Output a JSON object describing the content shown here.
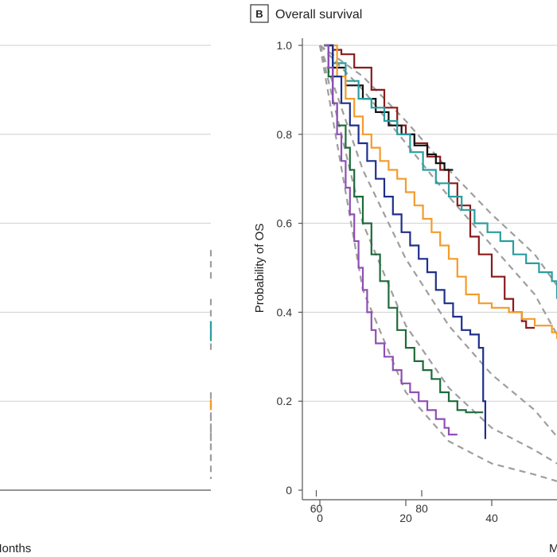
{
  "chart_data": [
    {
      "panel": "A",
      "type": "line",
      "title": "",
      "xlabel": "Months",
      "ylabel": "",
      "xlim": [
        0,
        80
      ],
      "x_ticks": [
        {
          "value": 60,
          "label": "60"
        },
        {
          "value": 80,
          "label": "80"
        }
      ],
      "y_grid": [
        0.2,
        0.4,
        0.6,
        0.8,
        1.0
      ],
      "grid": "horizontal",
      "colors": {
        "teal": "#2a9d9f",
        "orange": "#f39c2a",
        "dashed": "#9e9e9e"
      },
      "series": [
        {
          "color": "teal",
          "style": "step",
          "points": [
            [
              40,
              0.38
            ],
            [
              44,
              0.377
            ],
            [
              47,
              0.37
            ],
            [
              50,
              0.367
            ],
            [
              54,
              0.363
            ],
            [
              58,
              0.36
            ],
            [
              62,
              0.355
            ],
            [
              66,
              0.35
            ],
            [
              66,
              0.335
            ],
            [
              71,
              0.335
            ]
          ]
        },
        {
          "color": "orange",
          "style": "step",
          "points": [
            [
              40,
              0.205
            ],
            [
              50,
              0.205
            ],
            [
              50,
              0.19
            ],
            [
              62,
              0.19
            ],
            [
              62,
              0.18
            ],
            [
              72,
              0.18
            ]
          ]
        }
      ],
      "fits": [
        {
          "points": [
            [
              40,
              0.54
            ],
            [
              55,
              0.515
            ],
            [
              70,
              0.49
            ],
            [
              80,
              0.475
            ]
          ]
        },
        {
          "points": [
            [
              40,
              0.43
            ],
            [
              55,
              0.38
            ],
            [
              70,
              0.335
            ],
            [
              80,
              0.305
            ]
          ]
        },
        {
          "points": [
            [
              40,
              0.22
            ],
            [
              50,
              0.19
            ],
            [
              60,
              0.165
            ],
            [
              70,
              0.145
            ],
            [
              80,
              0.13
            ]
          ]
        },
        {
          "points": [
            [
              40,
              0.2
            ],
            [
              50,
              0.165
            ],
            [
              60,
              0.135
            ],
            [
              70,
              0.11
            ],
            [
              80,
              0.09
            ]
          ]
        },
        {
          "points": [
            [
              40,
              0.13
            ],
            [
              50,
              0.105
            ],
            [
              60,
              0.085
            ],
            [
              70,
              0.072
            ],
            [
              80,
              0.06
            ]
          ]
        },
        {
          "points": [
            [
              40,
              0.08
            ],
            [
              50,
              0.06
            ],
            [
              60,
              0.04
            ],
            [
              70,
              0.03
            ],
            [
              75,
              0.025
            ]
          ]
        }
      ]
    },
    {
      "panel": "B",
      "type": "line",
      "title": "Overall survival",
      "badge": "B",
      "xlabel": "M",
      "ylabel": "Probability of OS",
      "xlim": [
        -5,
        60
      ],
      "ylim": [
        0,
        1.0
      ],
      "x_ticks": [
        {
          "value": 0,
          "label": "0"
        },
        {
          "value": 20,
          "label": "20"
        },
        {
          "value": 40,
          "label": "40"
        }
      ],
      "y_ticks": [
        {
          "value": 0,
          "label": "0"
        },
        {
          "value": 0.2,
          "label": "0.2"
        },
        {
          "value": 0.4,
          "label": "0.4"
        },
        {
          "value": 0.6,
          "label": "0.6"
        },
        {
          "value": 0.8,
          "label": "0.8"
        },
        {
          "value": 1.0,
          "label": "1.0"
        }
      ],
      "grid": "horizontal",
      "colors": {
        "darkred": "#8b1a1a",
        "black": "#111111",
        "teal": "#2a9d9f",
        "orange": "#f39c2a",
        "navy": "#1f2f8a",
        "green": "#1e6b3a",
        "purple": "#8e4fb5",
        "dashed": "#9e9e9e"
      },
      "series": [
        {
          "color": "darkred",
          "style": "step",
          "points": [
            [
              1,
              1.0
            ],
            [
              3,
              0.99
            ],
            [
              5,
              0.98
            ],
            [
              8,
              0.95
            ],
            [
              12,
              0.9
            ],
            [
              15,
              0.86
            ],
            [
              18,
              0.82
            ],
            [
              20,
              0.8
            ],
            [
              22,
              0.78
            ],
            [
              25,
              0.75
            ],
            [
              28,
              0.72
            ],
            [
              30,
              0.69
            ],
            [
              32,
              0.64
            ],
            [
              35,
              0.57
            ],
            [
              37,
              0.53
            ],
            [
              40,
              0.48
            ],
            [
              43,
              0.43
            ],
            [
              45,
              0.4
            ],
            [
              47,
              0.38
            ],
            [
              48,
              0.365
            ],
            [
              50,
              0.365
            ]
          ]
        },
        {
          "color": "black",
          "style": "step",
          "points": [
            [
              1,
              1.0
            ],
            [
              3,
              0.95
            ],
            [
              6,
              0.91
            ],
            [
              10,
              0.88
            ],
            [
              13,
              0.85
            ],
            [
              16,
              0.82
            ],
            [
              19,
              0.8
            ],
            [
              22,
              0.775
            ],
            [
              25,
              0.755
            ],
            [
              27,
              0.735
            ],
            [
              29,
              0.72
            ],
            [
              31,
              0.72
            ]
          ]
        },
        {
          "color": "teal",
          "style": "step",
          "points": [
            [
              1,
              1.0
            ],
            [
              3,
              0.96
            ],
            [
              6,
              0.92
            ],
            [
              9,
              0.88
            ],
            [
              12,
              0.86
            ],
            [
              15,
              0.83
            ],
            [
              18,
              0.8
            ],
            [
              21,
              0.76
            ],
            [
              24,
              0.72
            ],
            [
              27,
              0.69
            ],
            [
              30,
              0.66
            ],
            [
              33,
              0.63
            ],
            [
              36,
              0.6
            ],
            [
              39,
              0.58
            ],
            [
              42,
              0.56
            ],
            [
              45,
              0.53
            ],
            [
              48,
              0.51
            ],
            [
              51,
              0.49
            ],
            [
              54,
              0.47
            ],
            [
              56,
              0.455
            ],
            [
              58,
              0.44
            ],
            [
              60,
              0.43
            ]
          ]
        },
        {
          "color": "orange",
          "style": "step",
          "points": [
            [
              2,
              1.0
            ],
            [
              4,
              0.93
            ],
            [
              6,
              0.88
            ],
            [
              8,
              0.84
            ],
            [
              10,
              0.8
            ],
            [
              12,
              0.77
            ],
            [
              14,
              0.74
            ],
            [
              16,
              0.72
            ],
            [
              18,
              0.7
            ],
            [
              20,
              0.67
            ],
            [
              22,
              0.64
            ],
            [
              24,
              0.61
            ],
            [
              26,
              0.58
            ],
            [
              28,
              0.55
            ],
            [
              30,
              0.52
            ],
            [
              32,
              0.48
            ],
            [
              34,
              0.44
            ],
            [
              37,
              0.42
            ],
            [
              40,
              0.41
            ],
            [
              44,
              0.4
            ],
            [
              47,
              0.385
            ],
            [
              50,
              0.37
            ],
            [
              54,
              0.355
            ],
            [
              58,
              0.345
            ],
            [
              60,
              0.34
            ]
          ]
        },
        {
          "color": "navy",
          "style": "step",
          "points": [
            [
              1,
              1.0
            ],
            [
              3,
              0.93
            ],
            [
              5,
              0.87
            ],
            [
              7,
              0.82
            ],
            [
              9,
              0.78
            ],
            [
              11,
              0.74
            ],
            [
              13,
              0.7
            ],
            [
              15,
              0.66
            ],
            [
              17,
              0.62
            ],
            [
              19,
              0.58
            ],
            [
              21,
              0.55
            ],
            [
              23,
              0.52
            ],
            [
              25,
              0.49
            ],
            [
              27,
              0.45
            ],
            [
              29,
              0.42
            ],
            [
              31,
              0.39
            ],
            [
              33,
              0.36
            ],
            [
              35,
              0.35
            ],
            [
              37,
              0.32
            ],
            [
              38,
              0.2
            ],
            [
              38.5,
              0.115
            ]
          ]
        },
        {
          "color": "green",
          "style": "step",
          "points": [
            [
              1,
              1.0
            ],
            [
              2,
              0.93
            ],
            [
              3,
              0.87
            ],
            [
              4,
              0.82
            ],
            [
              6,
              0.77
            ],
            [
              7,
              0.72
            ],
            [
              8,
              0.66
            ],
            [
              10,
              0.6
            ],
            [
              12,
              0.53
            ],
            [
              14,
              0.47
            ],
            [
              16,
              0.41
            ],
            [
              18,
              0.36
            ],
            [
              20,
              0.32
            ],
            [
              22,
              0.29
            ],
            [
              24,
              0.27
            ],
            [
              26,
              0.25
            ],
            [
              28,
              0.22
            ],
            [
              30,
              0.2
            ],
            [
              32,
              0.18
            ],
            [
              34,
              0.175
            ],
            [
              38,
              0.175
            ]
          ]
        },
        {
          "color": "purple",
          "style": "step",
          "points": [
            [
              1,
              1.0
            ],
            [
              2,
              0.95
            ],
            [
              3,
              0.87
            ],
            [
              4,
              0.8
            ],
            [
              5,
              0.74
            ],
            [
              6,
              0.68
            ],
            [
              7,
              0.62
            ],
            [
              8,
              0.56
            ],
            [
              9,
              0.5
            ],
            [
              10,
              0.45
            ],
            [
              11,
              0.4
            ],
            [
              12,
              0.36
            ],
            [
              13,
              0.33
            ],
            [
              15,
              0.3
            ],
            [
              17,
              0.27
            ],
            [
              19,
              0.24
            ],
            [
              21,
              0.22
            ],
            [
              23,
              0.2
            ],
            [
              25,
              0.18
            ],
            [
              27,
              0.16
            ],
            [
              29,
              0.14
            ],
            [
              30,
              0.125
            ],
            [
              32,
              0.125
            ]
          ]
        }
      ],
      "fits": [
        {
          "points": [
            [
              0,
              1.0
            ],
            [
              10,
              0.93
            ],
            [
              20,
              0.83
            ],
            [
              30,
              0.72
            ],
            [
              40,
              0.62
            ],
            [
              50,
              0.53
            ],
            [
              60,
              0.46
            ]
          ]
        },
        {
          "points": [
            [
              0,
              1.0
            ],
            [
              10,
              0.9
            ],
            [
              20,
              0.78
            ],
            [
              30,
              0.66
            ],
            [
              40,
              0.55
            ],
            [
              50,
              0.44
            ],
            [
              60,
              0.35
            ]
          ]
        },
        {
          "points": [
            [
              0,
              1.0
            ],
            [
              10,
              0.72
            ],
            [
              20,
              0.52
            ],
            [
              30,
              0.37
            ],
            [
              40,
              0.26
            ],
            [
              50,
              0.18
            ],
            [
              60,
              0.12
            ]
          ]
        },
        {
          "points": [
            [
              0,
              1.0
            ],
            [
              10,
              0.6
            ],
            [
              20,
              0.37
            ],
            [
              30,
              0.23
            ],
            [
              40,
              0.14
            ],
            [
              50,
              0.09
            ],
            [
              60,
              0.06
            ]
          ]
        },
        {
          "points": [
            [
              0,
              1.0
            ],
            [
              10,
              0.45
            ],
            [
              20,
              0.22
            ],
            [
              30,
              0.11
            ],
            [
              40,
              0.06
            ],
            [
              50,
              0.035
            ],
            [
              60,
              0.02
            ]
          ]
        }
      ]
    }
  ]
}
